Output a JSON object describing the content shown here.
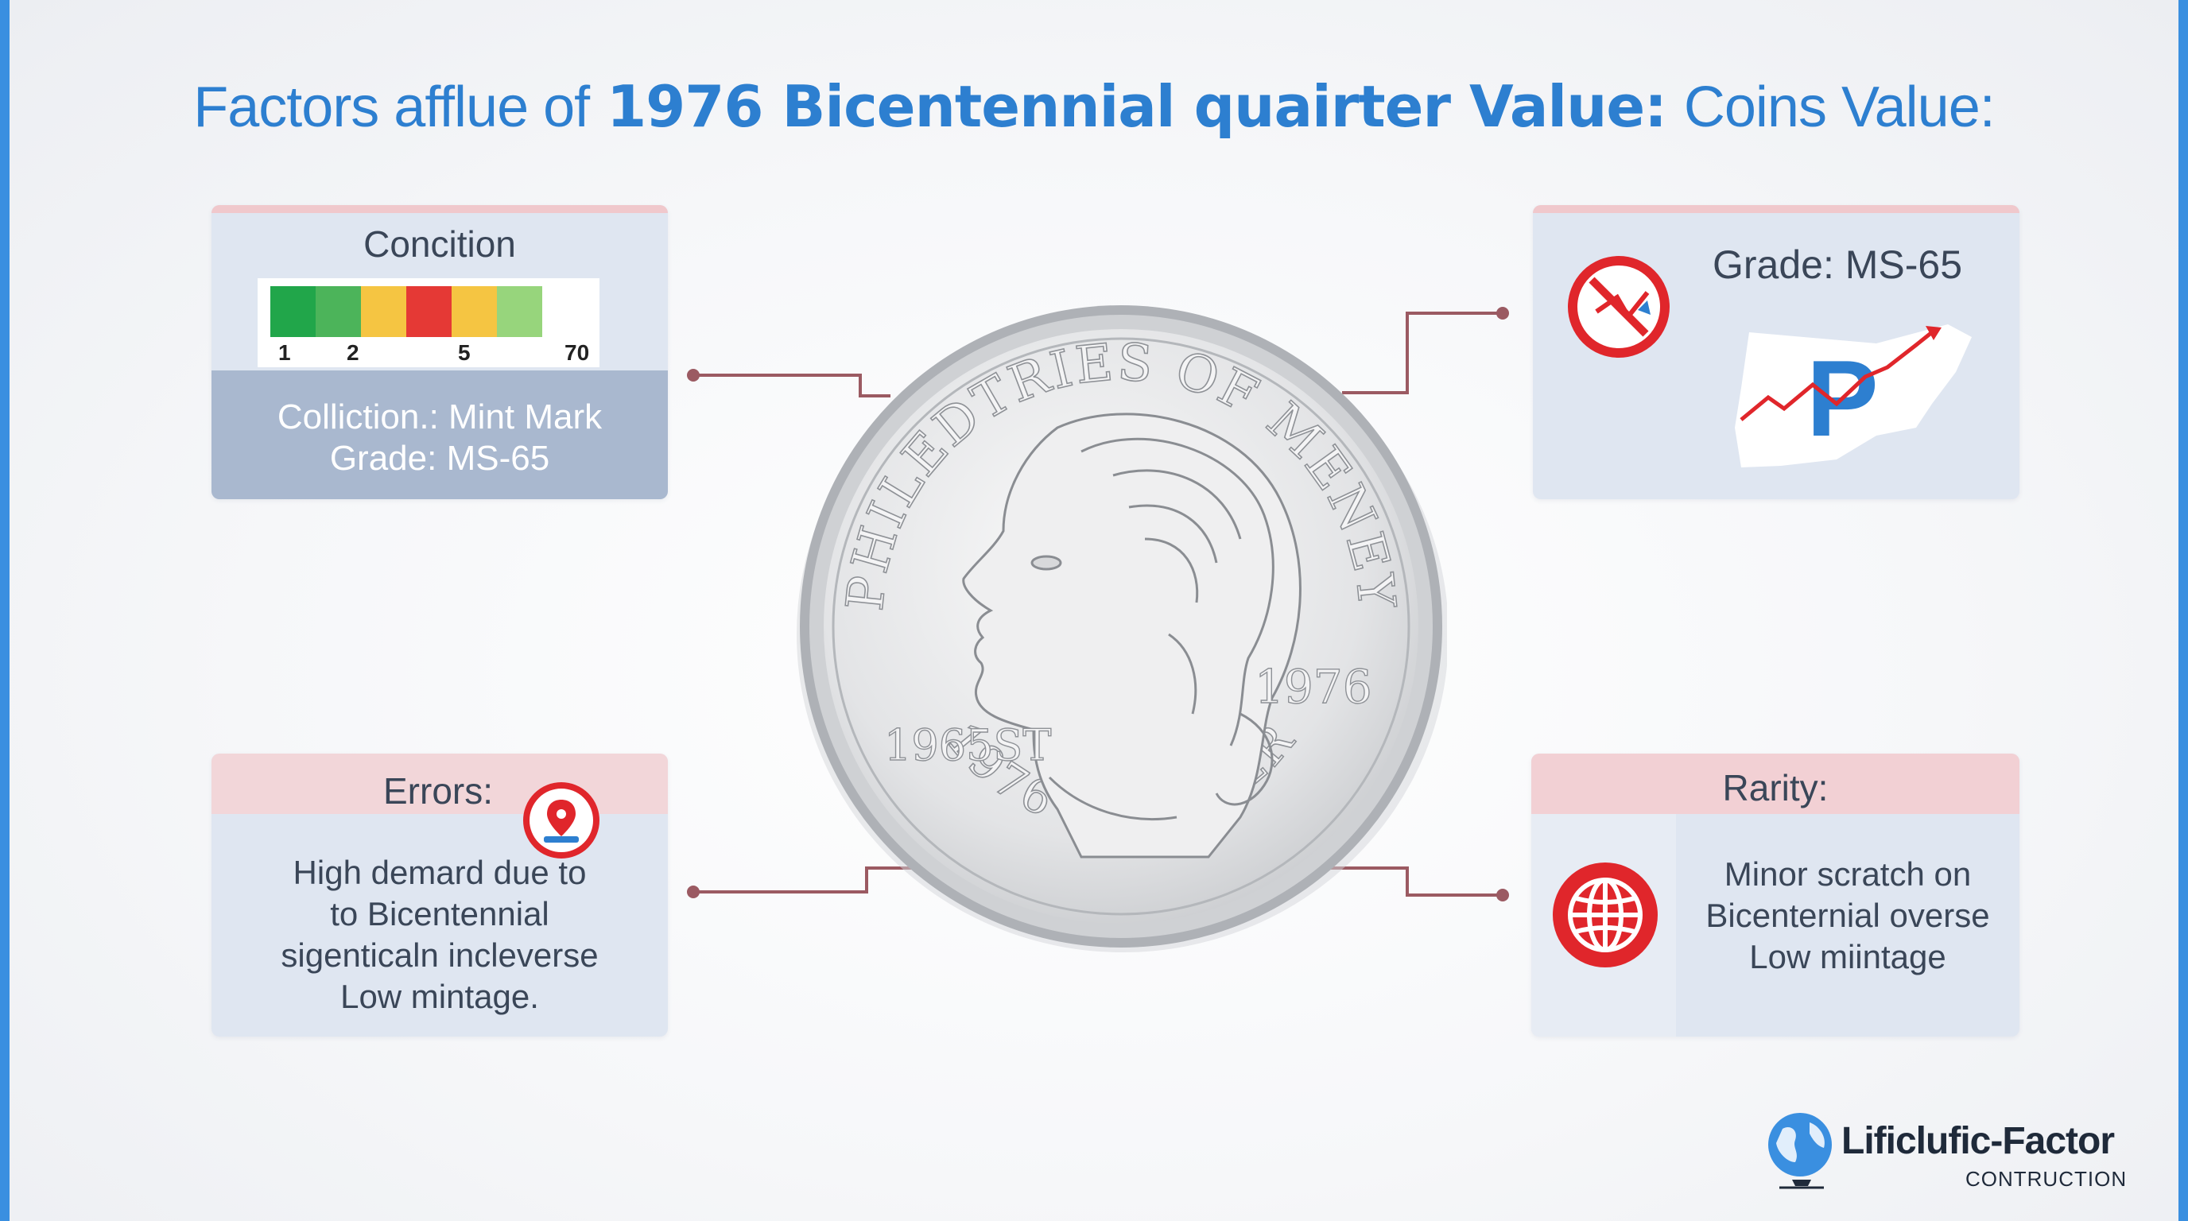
{
  "title": {
    "lead": "Factors afflue of",
    "bold": "1976 Bicentennial quairter Value:",
    "tail": "Coins Value:"
  },
  "condition_card": {
    "heading": "Concition",
    "scale_segments": [
      "#21a64a",
      "#4cb45a",
      "#f5c542",
      "#e53935",
      "#f5c542",
      "#97d57c"
    ],
    "scale_ticks": [
      "1",
      "2",
      "5",
      "70"
    ],
    "line1_a": "Colliction",
    "line1_b": ".: Mint Mark",
    "line2": "Grade:  MS-65"
  },
  "grade_card": {
    "heading": "Grade: MS-65",
    "icon": "no-entry-icon",
    "graphic_letter": "P",
    "graphic_icon": "trend-up-arrow-icon"
  },
  "errors_card": {
    "heading": "Errors:",
    "icon": "location-pin-icon",
    "lines": [
      "High demard due to",
      "to Bicentennial",
      "sigenticaln incleverse",
      "Low mintage."
    ]
  },
  "rarity_card": {
    "heading": "Rarity:",
    "icon": "globe-icon",
    "lines": [
      "Minor scratch on",
      "Bicenternial overse",
      "Low miintage"
    ]
  },
  "coin": {
    "top_legend": "PHILEDTRIES OF MENEY",
    "left_text": "1965ST",
    "right_year": "1976",
    "bottom_legend": "1976 QUARTER",
    "colors": {
      "rim": "#b9bcc1",
      "face": "#e9eaec",
      "relief": "#f7f7f8"
    }
  },
  "brand": {
    "name": "Lificlufic-Factor",
    "sub": "CONTRUCTION",
    "icon": "globe-logo-icon"
  },
  "colors": {
    "accent": "#2d7fd0",
    "connector": "#9b5a62",
    "icon_red": "#e0262b"
  }
}
